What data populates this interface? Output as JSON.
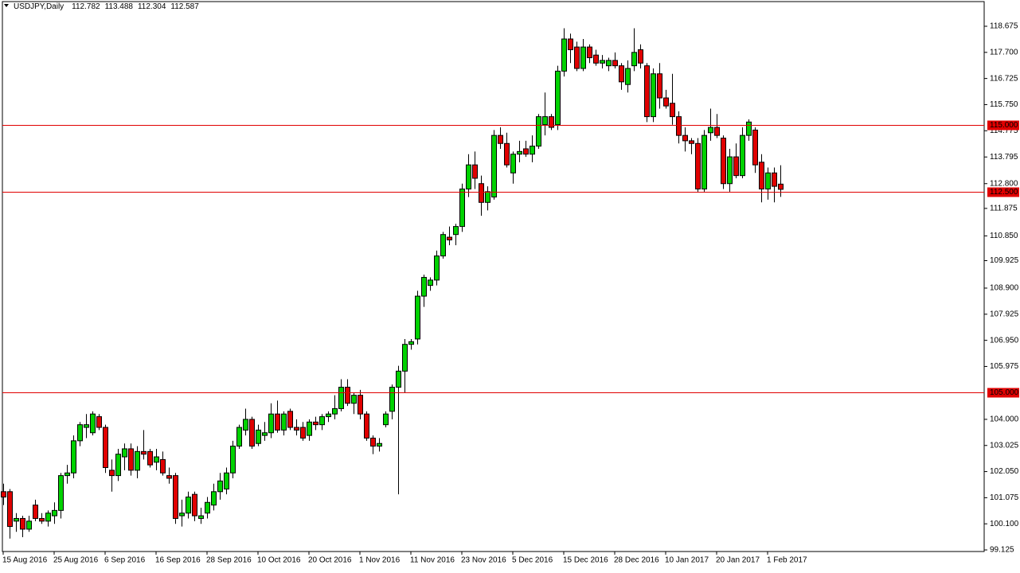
{
  "chart_data": {
    "type": "candlestick",
    "title": "USDJPY,Daily",
    "quote": [
      112.782,
      113.488,
      112.304,
      112.587
    ],
    "categories": [
      "15 Aug 2016",
      null,
      null,
      null,
      null,
      null,
      null,
      null,
      "25 Aug 2016",
      null,
      null,
      null,
      null,
      null,
      null,
      null,
      "6 Sep 2016",
      null,
      null,
      null,
      null,
      null,
      null,
      null,
      "16 Sep 2016",
      null,
      null,
      null,
      null,
      null,
      null,
      null,
      "28 Sep 2016",
      null,
      null,
      null,
      null,
      null,
      null,
      null,
      "10 Oct 2016",
      null,
      null,
      null,
      null,
      null,
      null,
      null,
      "20 Oct 2016",
      null,
      null,
      null,
      null,
      null,
      null,
      null,
      "1 Nov 2016",
      null,
      null,
      null,
      null,
      null,
      null,
      null,
      "11 Nov 2016",
      null,
      null,
      null,
      null,
      null,
      null,
      null,
      "23 Nov 2016",
      null,
      null,
      null,
      null,
      null,
      null,
      null,
      "5 Dec 2016",
      null,
      null,
      null,
      null,
      null,
      null,
      null,
      "15 Dec 2016",
      null,
      null,
      null,
      null,
      null,
      null,
      null,
      "28 Dec 2016",
      null,
      null,
      null,
      null,
      null,
      null,
      null,
      "10 Jan 2017",
      null,
      null,
      null,
      null,
      null,
      null,
      null,
      "20 Jan 2017",
      null,
      null,
      null,
      null,
      null,
      null,
      null,
      "1 Feb 2017",
      null,
      null
    ],
    "open": [
      101.3,
      101.3,
      100.2,
      100.3,
      99.9,
      100.8,
      100.3,
      100.2,
      100.4,
      100.6,
      101.9,
      102.0,
      103.2,
      103.7,
      103.5,
      104.1,
      103.7,
      102.1,
      101.9,
      102.6,
      102.9,
      102.1,
      102.8,
      102.8,
      102.4,
      102.5,
      101.9,
      101.9,
      100.4,
      100.5,
      101.2,
      100.3,
      100.5,
      100.8,
      101.3,
      101.4,
      102.0,
      103.0,
      103.6,
      104.0,
      103.1,
      103.4,
      103.5,
      104.2,
      103.6,
      104.3,
      103.7,
      103.7,
      103.4,
      103.9,
      103.8,
      104.1,
      104.2,
      104.4,
      105.2,
      104.6,
      104.9,
      104.2,
      103.3,
      103.0,
      103.8,
      104.3,
      105.2,
      105.8,
      106.8,
      107.0,
      108.6,
      109.0,
      109.2,
      110.1,
      110.8,
      110.9,
      111.2,
      112.6,
      113.5,
      112.8,
      112.1,
      112.3,
      114.6,
      114.3,
      113.2,
      113.9,
      114.1,
      113.9,
      114.2,
      115.0,
      115.3,
      115.0,
      117.0,
      118.2,
      117.9,
      117.1,
      117.9,
      117.6,
      117.3,
      117.2,
      117.4,
      117.2,
      116.5,
      117.2,
      117.8,
      117.2,
      115.3,
      116.9,
      116.0,
      115.8,
      115.3,
      114.6,
      114.4,
      114.3,
      112.6,
      114.7,
      114.9,
      114.5,
      112.8,
      113.8,
      113.1,
      114.6,
      114.8,
      113.6,
      112.6,
      113.2,
      112.782
    ],
    "high": [
      101.6,
      101.4,
      100.5,
      100.4,
      100.4,
      101.0,
      100.5,
      100.6,
      100.9,
      102.0,
      102.3,
      103.4,
      103.9,
      104.2,
      104.3,
      104.2,
      103.8,
      102.5,
      102.9,
      103.1,
      103.1,
      103.0,
      103.6,
      102.9,
      102.9,
      102.8,
      102.2,
      102.0,
      101.0,
      101.3,
      101.3,
      100.7,
      101.1,
      101.6,
      102.0,
      102.2,
      103.2,
      103.8,
      104.4,
      104.1,
      103.8,
      103.9,
      104.6,
      104.7,
      104.3,
      104.4,
      104.0,
      103.9,
      104.0,
      104.1,
      104.2,
      104.3,
      104.9,
      105.5,
      105.5,
      105.0,
      105.1,
      104.3,
      103.4,
      103.3,
      104.3,
      105.3,
      106.0,
      107.0,
      107.0,
      108.8,
      109.4,
      109.3,
      110.3,
      111.0,
      111.2,
      111.3,
      112.8,
      113.9,
      114.0,
      113.1,
      112.7,
      114.8,
      114.9,
      114.7,
      114.0,
      114.4,
      114.4,
      114.6,
      115.4,
      116.2,
      115.4,
      117.2,
      118.6,
      118.4,
      118.1,
      118.2,
      118.0,
      117.8,
      117.6,
      117.5,
      117.7,
      117.3,
      117.4,
      118.6,
      118.0,
      117.3,
      117.1,
      117.3,
      116.3,
      116.9,
      115.5,
      114.9,
      114.5,
      114.5,
      114.8,
      115.6,
      115.4,
      114.6,
      114.1,
      114.3,
      114.9,
      115.2,
      114.9,
      113.9,
      113.4,
      113.4,
      113.488
    ],
    "low": [
      100.8,
      99.55,
      99.8,
      99.6,
      99.8,
      100.2,
      100.1,
      100.0,
      100.1,
      100.3,
      101.6,
      101.8,
      103.0,
      103.3,
      103.4,
      103.6,
      102.0,
      101.3,
      101.7,
      102.1,
      101.9,
      101.8,
      102.5,
      102.2,
      102.1,
      101.9,
      101.6,
      100.1,
      100.0,
      100.3,
      100.2,
      100.1,
      100.3,
      100.6,
      101.0,
      101.2,
      101.8,
      102.9,
      103.4,
      102.9,
      103.0,
      103.2,
      103.3,
      103.5,
      103.4,
      103.6,
      103.4,
      103.2,
      103.2,
      103.6,
      103.6,
      103.9,
      104.0,
      104.3,
      104.5,
      104.2,
      104.0,
      103.2,
      102.7,
      102.8,
      103.7,
      104.0,
      101.2,
      105.0,
      106.6,
      106.8,
      108.2,
      108.8,
      109.0,
      110.0,
      110.5,
      110.5,
      111.0,
      112.3,
      112.6,
      111.6,
      111.8,
      112.2,
      114.1,
      113.4,
      112.8,
      113.6,
      113.8,
      113.6,
      114.1,
      114.6,
      114.8,
      114.8,
      116.8,
      117.3,
      117.0,
      117.0,
      117.3,
      117.2,
      117.1,
      117.0,
      117.1,
      116.3,
      116.2,
      117.0,
      117.1,
      115.1,
      115.1,
      115.6,
      115.6,
      115.0,
      114.3,
      114.0,
      113.9,
      112.5,
      112.5,
      114.4,
      114.5,
      112.6,
      112.5,
      113.0,
      113.0,
      114.4,
      113.2,
      112.1,
      112.2,
      112.1,
      112.304
    ],
    "close": [
      101.1,
      100.0,
      100.3,
      99.9,
      100.2,
      100.3,
      100.2,
      100.5,
      100.6,
      101.9,
      102.0,
      103.2,
      103.8,
      103.8,
      104.2,
      103.7,
      102.2,
      101.9,
      102.7,
      102.9,
      102.1,
      102.8,
      102.7,
      102.3,
      102.6,
      102.0,
      101.8,
      100.3,
      100.5,
      101.1,
      100.4,
      100.4,
      100.9,
      101.3,
      101.7,
      102.0,
      103.0,
      103.7,
      104.0,
      103.0,
      103.6,
      103.5,
      104.2,
      103.6,
      104.2,
      103.7,
      103.6,
      103.3,
      103.9,
      103.8,
      104.1,
      104.2,
      104.4,
      105.2,
      104.6,
      104.9,
      104.2,
      103.3,
      103.0,
      103.1,
      104.2,
      105.2,
      105.8,
      106.8,
      106.9,
      108.6,
      109.3,
      109.2,
      110.1,
      110.9,
      110.7,
      111.2,
      112.6,
      113.5,
      113.0,
      112.1,
      112.5,
      114.6,
      114.3,
      113.5,
      113.9,
      114.0,
      113.9,
      114.2,
      115.3,
      115.3,
      114.9,
      117.0,
      118.2,
      117.8,
      117.1,
      117.9,
      117.5,
      117.3,
      117.4,
      117.4,
      117.2,
      116.6,
      117.1,
      117.7,
      117.3,
      115.3,
      116.9,
      116.0,
      115.7,
      115.3,
      114.6,
      114.4,
      114.3,
      112.6,
      114.6,
      114.9,
      114.6,
      112.8,
      113.8,
      113.1,
      114.6,
      115.1,
      113.5,
      112.6,
      113.2,
      112.7,
      112.587
    ],
    "up_color": "#00d200",
    "down_color": "#e00000",
    "ylim": [
      99.066,
      119.596
    ],
    "yticks": [
      118.675,
      {
        "value": 117.7,
        "label": "117.700"
      },
      116.725,
      {
        "value": 115.75,
        "label": "115.750"
      },
      114.775,
      113.795,
      {
        "value": 112.8,
        "label": "112.800"
      },
      111.875,
      {
        "value": 110.85,
        "label": "110.850"
      },
      109.925,
      {
        "value": 108.9,
        "label": "108.900"
      },
      107.925,
      {
        "value": 106.95,
        "label": "106.950"
      },
      105.975,
      {
        "value": 104,
        "label": "104.000"
      },
      103.025,
      {
        "value": 102.05,
        "label": "102.050"
      },
      101.075,
      {
        "value": 100.1,
        "label": "100.100"
      },
      99.125
    ],
    "levels": [
      {
        "value": 115,
        "label": "115.000"
      },
      {
        "value": 112.5,
        "label": "112.500"
      },
      {
        "value": 105,
        "label": "105.000"
      }
    ],
    "level_color": "#e00000"
  }
}
